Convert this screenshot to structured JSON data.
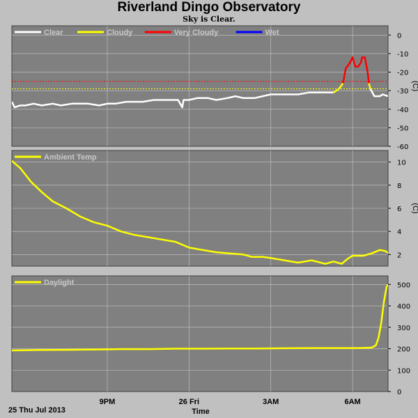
{
  "title": "Riverland Dingo Observatory",
  "subtitle": "Sky is Clear.",
  "date_label": "25 Thu Jul 2013",
  "colors": {
    "background": "#c0c0c0",
    "plot_bg": "#808080",
    "grid": "#c8c8c8",
    "clear": "#ffffff",
    "cloudy": "#ffff00",
    "very_cloudy": "#ff0000",
    "wet": "#0000ff"
  },
  "chart_data": [
    {
      "type": "line",
      "name": "sky",
      "legend": [
        {
          "label": "Clear",
          "color": "#ffffff"
        },
        {
          "label": "Cloudy",
          "color": "#ffff00"
        },
        {
          "label": "Very Cloudy",
          "color": "#ff0000"
        },
        {
          "label": "Wet",
          "color": "#0000ff"
        }
      ],
      "ylabel": "(C)",
      "ylim": [
        -60,
        5
      ],
      "yticks": [
        0,
        -10,
        -20,
        -30,
        -40,
        -50,
        -60
      ],
      "xlim": [
        17.5,
        31.3
      ],
      "x_unit": "hours",
      "thresholds": [
        {
          "value": -25,
          "color": "#ff0000"
        },
        {
          "value": -29,
          "color": "#ffff00"
        }
      ],
      "series": [
        {
          "points": [
            [
              17.5,
              -36
            ],
            [
              17.6,
              -39
            ],
            [
              17.8,
              -38
            ],
            [
              18.0,
              -38
            ],
            [
              18.3,
              -37
            ],
            [
              18.6,
              -38
            ],
            [
              19.0,
              -37
            ],
            [
              19.3,
              -38
            ],
            [
              19.7,
              -37
            ],
            [
              20.0,
              -37
            ],
            [
              20.3,
              -37
            ],
            [
              20.7,
              -38
            ],
            [
              21.0,
              -37
            ],
            [
              21.3,
              -37
            ],
            [
              21.7,
              -36
            ],
            [
              22.0,
              -36
            ],
            [
              22.3,
              -36
            ],
            [
              22.7,
              -35
            ],
            [
              23.0,
              -35
            ],
            [
              23.3,
              -35
            ],
            [
              23.6,
              -35
            ],
            [
              23.75,
              -39
            ],
            [
              23.8,
              -35
            ],
            [
              24.0,
              -35
            ],
            [
              24.3,
              -34
            ],
            [
              24.7,
              -34
            ],
            [
              25.0,
              -35
            ],
            [
              25.4,
              -34
            ],
            [
              25.7,
              -33
            ],
            [
              26.0,
              -34
            ],
            [
              26.4,
              -34
            ],
            [
              26.7,
              -33
            ],
            [
              27.0,
              -32
            ],
            [
              27.4,
              -32
            ],
            [
              27.7,
              -32
            ],
            [
              28.0,
              -32
            ],
            [
              28.4,
              -31
            ],
            [
              28.7,
              -31
            ],
            [
              29.0,
              -31
            ],
            [
              29.3,
              -31
            ]
          ],
          "segments": [
            {
              "from": 17.5,
              "to": 29.3,
              "color": "#ffffff"
            }
          ]
        },
        {
          "points": [
            [
              29.3,
              -31
            ],
            [
              29.5,
              -29
            ],
            [
              29.65,
              -26
            ]
          ],
          "segments": [
            {
              "from": 29.3,
              "to": 29.65,
              "color": "#ffff00"
            }
          ]
        },
        {
          "points": [
            [
              29.65,
              -26
            ],
            [
              29.75,
              -18
            ],
            [
              29.9,
              -15
            ],
            [
              30.0,
              -12
            ],
            [
              30.1,
              -17
            ],
            [
              30.2,
              -17
            ],
            [
              30.3,
              -15
            ],
            [
              30.35,
              -12
            ],
            [
              30.45,
              -12
            ],
            [
              30.55,
              -20
            ],
            [
              30.6,
              -26
            ]
          ],
          "segments": [
            {
              "from": 29.65,
              "to": 30.6,
              "color": "#ff0000"
            }
          ]
        },
        {
          "points": [
            [
              30.6,
              -26
            ],
            [
              30.65,
              -29
            ]
          ],
          "segments": [
            {
              "from": 30.6,
              "to": 30.65,
              "color": "#ffff00"
            }
          ]
        },
        {
          "points": [
            [
              30.65,
              -29
            ],
            [
              30.8,
              -33
            ],
            [
              31.0,
              -33
            ],
            [
              31.1,
              -32
            ],
            [
              31.3,
              -33
            ]
          ],
          "segments": [
            {
              "from": 30.65,
              "to": 31.3,
              "color": "#ffffff"
            }
          ]
        }
      ]
    },
    {
      "type": "line",
      "name": "ambient",
      "legend": [
        {
          "label": "Ambient Temp",
          "color": "#ffff00"
        }
      ],
      "ylabel": "(C)",
      "ylim": [
        1,
        11
      ],
      "yticks": [
        2,
        4,
        6,
        8,
        10
      ],
      "xlim": [
        17.5,
        31.3
      ],
      "series": [
        {
          "color": "#ffff00",
          "points": [
            [
              17.5,
              10.1
            ],
            [
              17.8,
              9.5
            ],
            [
              18.2,
              8.3
            ],
            [
              18.6,
              7.4
            ],
            [
              19.0,
              6.6
            ],
            [
              19.5,
              6.0
            ],
            [
              20.0,
              5.3
            ],
            [
              20.5,
              4.8
            ],
            [
              21.0,
              4.5
            ],
            [
              21.5,
              4.0
            ],
            [
              22.0,
              3.7
            ],
            [
              22.5,
              3.5
            ],
            [
              23.0,
              3.3
            ],
            [
              23.5,
              3.1
            ],
            [
              24.0,
              2.6
            ],
            [
              24.5,
              2.4
            ],
            [
              25.0,
              2.2
            ],
            [
              25.5,
              2.1
            ],
            [
              26.0,
              2.0
            ],
            [
              26.3,
              1.8
            ],
            [
              26.7,
              1.8
            ],
            [
              27.0,
              1.7
            ],
            [
              27.5,
              1.5
            ],
            [
              28.0,
              1.3
            ],
            [
              28.5,
              1.5
            ],
            [
              29.0,
              1.2
            ],
            [
              29.3,
              1.4
            ],
            [
              29.6,
              1.2
            ],
            [
              29.8,
              1.6
            ],
            [
              30.0,
              1.9
            ],
            [
              30.4,
              1.9
            ],
            [
              30.7,
              2.1
            ],
            [
              31.0,
              2.4
            ],
            [
              31.2,
              2.3
            ],
            [
              31.5,
              1.9
            ],
            [
              31.7,
              1.4
            ],
            [
              31.3,
              1.3
            ]
          ]
        }
      ]
    },
    {
      "type": "line",
      "name": "daylight",
      "legend": [
        {
          "label": "Daylight",
          "color": "#ffff00"
        }
      ],
      "ylim": [
        0,
        540
      ],
      "yticks": [
        0,
        100,
        200,
        300,
        400,
        500
      ],
      "xlim": [
        17.5,
        31.3
      ],
      "xticks": [
        {
          "x": 21,
          "label": "9PM"
        },
        {
          "x": 24,
          "label": "26 Fri"
        },
        {
          "x": 27,
          "label": "3AM"
        },
        {
          "x": 30,
          "label": "6AM"
        }
      ],
      "xlabel": "Time",
      "series": [
        {
          "color": "#ffff00",
          "points": [
            [
              17.5,
              192
            ],
            [
              18.5,
              194
            ],
            [
              19.5,
              195
            ],
            [
              20.5,
              196
            ],
            [
              21.5,
              198
            ],
            [
              22.5,
              198
            ],
            [
              23.5,
              200
            ],
            [
              24.5,
              200
            ],
            [
              25.5,
              201
            ],
            [
              26.5,
              201
            ],
            [
              27.5,
              202
            ],
            [
              28.5,
              203
            ],
            [
              29.5,
              203
            ],
            [
              30.2,
              203
            ],
            [
              30.7,
              205
            ],
            [
              30.85,
              215
            ],
            [
              30.95,
              250
            ],
            [
              31.05,
              320
            ],
            [
              31.15,
              420
            ],
            [
              31.25,
              490
            ],
            [
              31.3,
              500
            ]
          ]
        }
      ]
    }
  ]
}
